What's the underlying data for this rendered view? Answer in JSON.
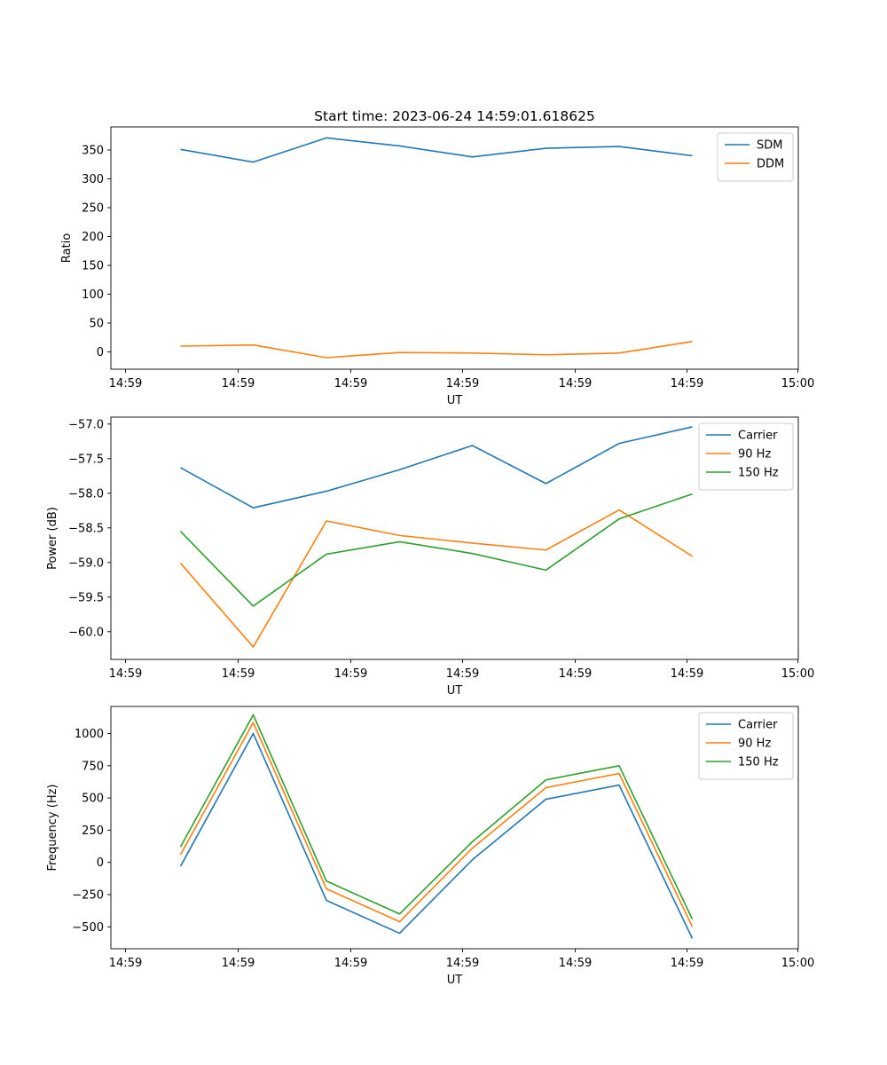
{
  "figure": {
    "title": "Start time: 2023-06-24 14:59:01.618625"
  },
  "chart_data": [
    {
      "type": "line",
      "xlabel": "UT",
      "ylabel": "Ratio",
      "x_tick_labels": [
        "14:59",
        "14:59",
        "14:59",
        "14:59",
        "14:59",
        "14:59",
        "15:00"
      ],
      "yticks": [
        0,
        50,
        100,
        150,
        200,
        250,
        300,
        350
      ],
      "ylim": [
        -30,
        390
      ],
      "legend_position": "upper right",
      "grid": false,
      "series": [
        {
          "name": "SDM",
          "color": "#1f77b4",
          "values": [
            351,
            329,
            371,
            357,
            338,
            353,
            356,
            340
          ]
        },
        {
          "name": "DDM",
          "color": "#ff7f0e",
          "values": [
            10,
            12,
            -10,
            -1,
            -2,
            -5,
            -2,
            18
          ]
        }
      ]
    },
    {
      "type": "line",
      "xlabel": "UT",
      "ylabel": "Power (dB)",
      "x_tick_labels": [
        "14:59",
        "14:59",
        "14:59",
        "14:59",
        "14:59",
        "14:59",
        "15:00"
      ],
      "yticks": [
        -60.0,
        -59.5,
        -59.0,
        -58.5,
        -58.0,
        -57.5,
        -57.0
      ],
      "ytick_labels": [
        "−60.0",
        "−59.5",
        "−59.0",
        "−58.5",
        "−58.0",
        "−57.5",
        "−57.0"
      ],
      "ylim": [
        -60.4,
        -56.9
      ],
      "legend_position": "upper right",
      "grid": false,
      "series": [
        {
          "name": "Carrier",
          "color": "#1f77b4",
          "values": [
            -57.63,
            -58.21,
            -57.97,
            -57.66,
            -57.31,
            -57.86,
            -57.28,
            -57.04
          ]
        },
        {
          "name": "90 Hz",
          "color": "#ff7f0e",
          "values": [
            -59.01,
            -60.22,
            -58.4,
            -58.61,
            -58.72,
            -58.82,
            -58.24,
            -58.91
          ]
        },
        {
          "name": "150 Hz",
          "color": "#2ca02c",
          "values": [
            -58.55,
            -59.63,
            -58.88,
            -58.7,
            -58.87,
            -59.11,
            -58.37,
            -58.01
          ]
        }
      ]
    },
    {
      "type": "line",
      "xlabel": "UT",
      "ylabel": "Frequency (Hz)",
      "x_tick_labels": [
        "14:59",
        "14:59",
        "14:59",
        "14:59",
        "14:59",
        "14:59",
        "15:00"
      ],
      "yticks": [
        -500,
        -250,
        0,
        250,
        500,
        750,
        1000
      ],
      "ytick_labels": [
        "−500",
        "−250",
        "0",
        "250",
        "500",
        "750",
        "1000"
      ],
      "ylim": [
        -670,
        1210
      ],
      "legend_position": "upper right",
      "grid": false,
      "series": [
        {
          "name": "Carrier",
          "color": "#1f77b4",
          "values": [
            -30,
            1000,
            -295,
            -550,
            20,
            490,
            600,
            -590
          ]
        },
        {
          "name": "90 Hz",
          "color": "#ff7f0e",
          "values": [
            60,
            1085,
            -205,
            -460,
            110,
            580,
            690,
            -500
          ]
        },
        {
          "name": "150 Hz",
          "color": "#2ca02c",
          "values": [
            120,
            1145,
            -145,
            -400,
            160,
            640,
            750,
            -440
          ]
        }
      ]
    }
  ]
}
